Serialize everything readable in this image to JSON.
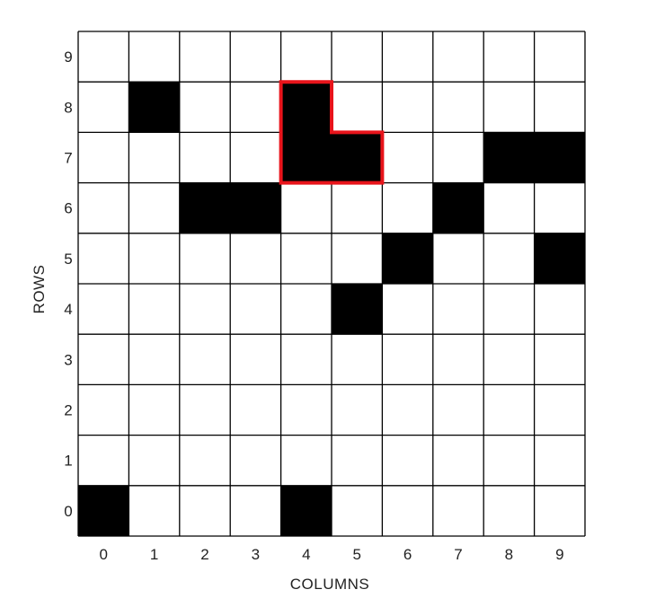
{
  "grid": {
    "columns": 10,
    "rows": 10,
    "column_labels": [
      "0",
      "1",
      "2",
      "3",
      "4",
      "5",
      "6",
      "7",
      "8",
      "9"
    ],
    "row_labels": [
      "0",
      "1",
      "2",
      "3",
      "4",
      "5",
      "6",
      "7",
      "8",
      "9"
    ],
    "x_axis_title": "COLUMNS",
    "y_axis_title": "ROWS",
    "filled_cells": [
      {
        "col": 1,
        "row": 8
      },
      {
        "col": 4,
        "row": 8
      },
      {
        "col": 4,
        "row": 7
      },
      {
        "col": 5,
        "row": 7
      },
      {
        "col": 8,
        "row": 7
      },
      {
        "col": 9,
        "row": 7
      },
      {
        "col": 2,
        "row": 6
      },
      {
        "col": 3,
        "row": 6
      },
      {
        "col": 7,
        "row": 6
      },
      {
        "col": 6,
        "row": 5
      },
      {
        "col": 9,
        "row": 5
      },
      {
        "col": 5,
        "row": 4
      },
      {
        "col": 0,
        "row": 0
      },
      {
        "col": 4,
        "row": 0
      }
    ],
    "highlighted_cells": [
      {
        "col": 4,
        "row": 8
      },
      {
        "col": 4,
        "row": 7
      },
      {
        "col": 5,
        "row": 7
      }
    ],
    "colors": {
      "filled": "#000000",
      "empty": "#ffffff",
      "grid_line": "#000000",
      "highlight": "#e8141b"
    }
  }
}
